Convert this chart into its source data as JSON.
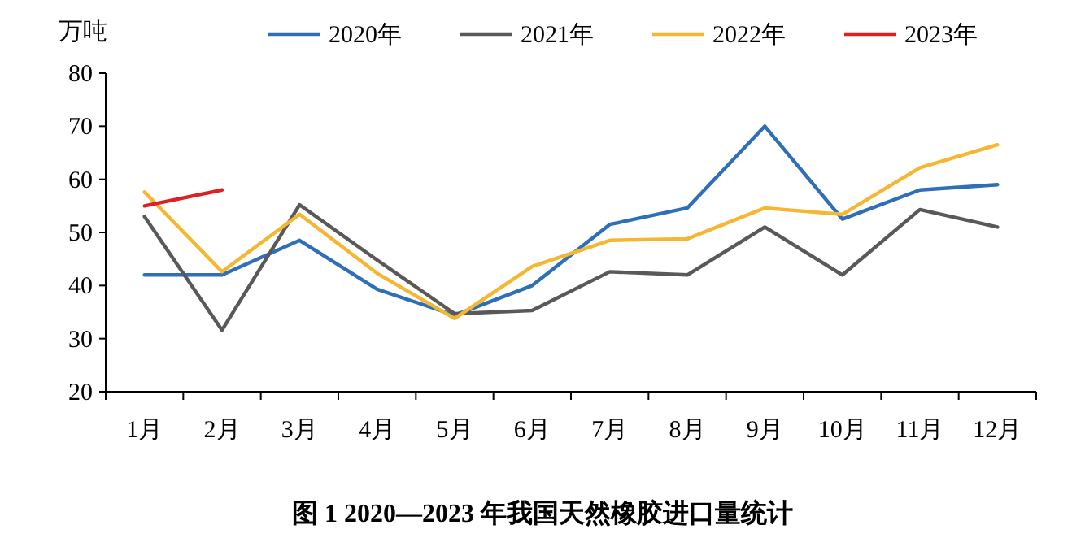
{
  "chart_data": {
    "type": "line",
    "title": "图 1 2020—2023 年我国天然橡胶进口量统计",
    "ylabel": "万吨",
    "categories": [
      "1月",
      "2月",
      "3月",
      "4月",
      "5月",
      "6月",
      "7月",
      "8月",
      "9月",
      "10月",
      "11月",
      "12月"
    ],
    "series": [
      {
        "name": "2020年",
        "color": "#2e6fb7",
        "values": [
          42,
          42,
          48.5,
          39.3,
          34.4,
          40,
          51.5,
          54.6,
          70,
          52.5,
          58,
          59
        ]
      },
      {
        "name": "2021年",
        "color": "#595959",
        "values": [
          53,
          31.6,
          55.2,
          44.8,
          34.7,
          35.3,
          42.6,
          42,
          51,
          42,
          54.3,
          51
        ]
      },
      {
        "name": "2022年",
        "color": "#f5b731",
        "values": [
          57.6,
          42.6,
          53.4,
          42.3,
          33.8,
          43.6,
          48.5,
          48.8,
          54.6,
          53.4,
          62.2,
          66.5
        ]
      },
      {
        "name": "2023年",
        "color": "#e02020",
        "values": [
          55,
          58,
          null,
          null,
          null,
          null,
          null,
          null,
          null,
          null,
          null,
          null
        ]
      }
    ],
    "ylim": [
      20,
      80
    ],
    "yticks": [
      20,
      30,
      40,
      50,
      60,
      70,
      80
    ],
    "grid": false,
    "legend": "top right",
    "marker": "none",
    "line_style": "solid"
  }
}
